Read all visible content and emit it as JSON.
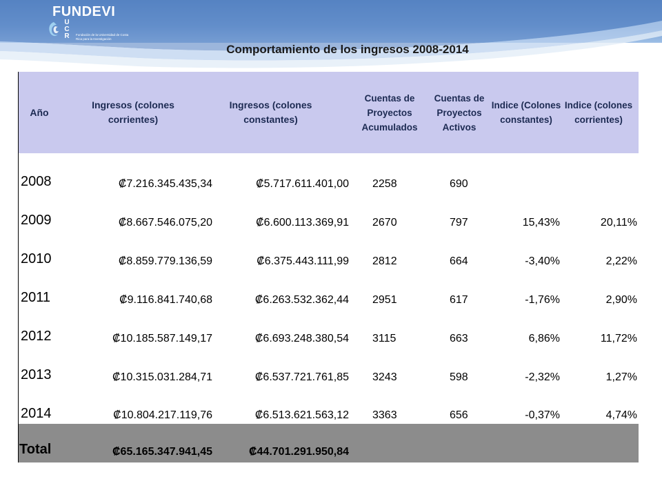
{
  "logo": {
    "name": "FUNDEVI",
    "ucr": "UCR",
    "subtitle": "Fundación de la Universidad de Costa Rica para la Investigación"
  },
  "title": "Comportamiento de los ingresos 2008-2014",
  "table": {
    "headers": [
      "Año",
      "Ingresos (colones corrientes)",
      "Ingresos (colones constantes)",
      "Cuentas de Proyectos Acumulados",
      "Cuentas de Proyectos Activos",
      "Indice (Colones constantes)",
      "Indice (colones corrientes)"
    ],
    "rows": [
      {
        "year": "2008",
        "corrientes": "₡7.216.345.435,34",
        "constantes": "₡5.717.611.401,00",
        "acumulados": "2258",
        "activos": "690",
        "idx_const": "",
        "idx_corr": ""
      },
      {
        "year": "2009",
        "corrientes": "₡8.667.546.075,20",
        "constantes": "₡6.600.113.369,91",
        "acumulados": "2670",
        "activos": "797",
        "idx_const": "15,43%",
        "idx_corr": "20,11%"
      },
      {
        "year": "2010",
        "corrientes": "₡8.859.779.136,59",
        "constantes": "₡6.375.443.111,99",
        "acumulados": "2812",
        "activos": "664",
        "idx_const": "-3,40%",
        "idx_corr": "2,22%"
      },
      {
        "year": "2011",
        "corrientes": "₡9.116.841.740,68",
        "constantes": "₡6.263.532.362,44",
        "acumulados": "2951",
        "activos": "617",
        "idx_const": "-1,76%",
        "idx_corr": "2,90%"
      },
      {
        "year": "2012",
        "corrientes": "₡10.185.587.149,17",
        "constantes": "₡6.693.248.380,54",
        "acumulados": "3115",
        "activos": "663",
        "idx_const": "6,86%",
        "idx_corr": "11,72%"
      },
      {
        "year": "2013",
        "corrientes": "₡10.315.031.284,71",
        "constantes": "₡6.537.721.761,85",
        "acumulados": "3243",
        "activos": "598",
        "idx_const": "-2,32%",
        "idx_corr": "1,27%"
      },
      {
        "year": "2014",
        "corrientes": "₡10.804.217.119,76",
        "constantes": "₡6.513.621.563,12",
        "acumulados": "3363",
        "activos": "656",
        "idx_const": "-0,37%",
        "idx_corr": "4,74%"
      }
    ],
    "total": {
      "label": "Total",
      "corrientes": "₡65.165.347.941,45",
      "constantes": "₡44.701.291.950,84"
    }
  },
  "colors": {
    "header_bg": "#c9c9ee",
    "total_bg": "#8c8c8c",
    "band": "#4f7fbf"
  }
}
